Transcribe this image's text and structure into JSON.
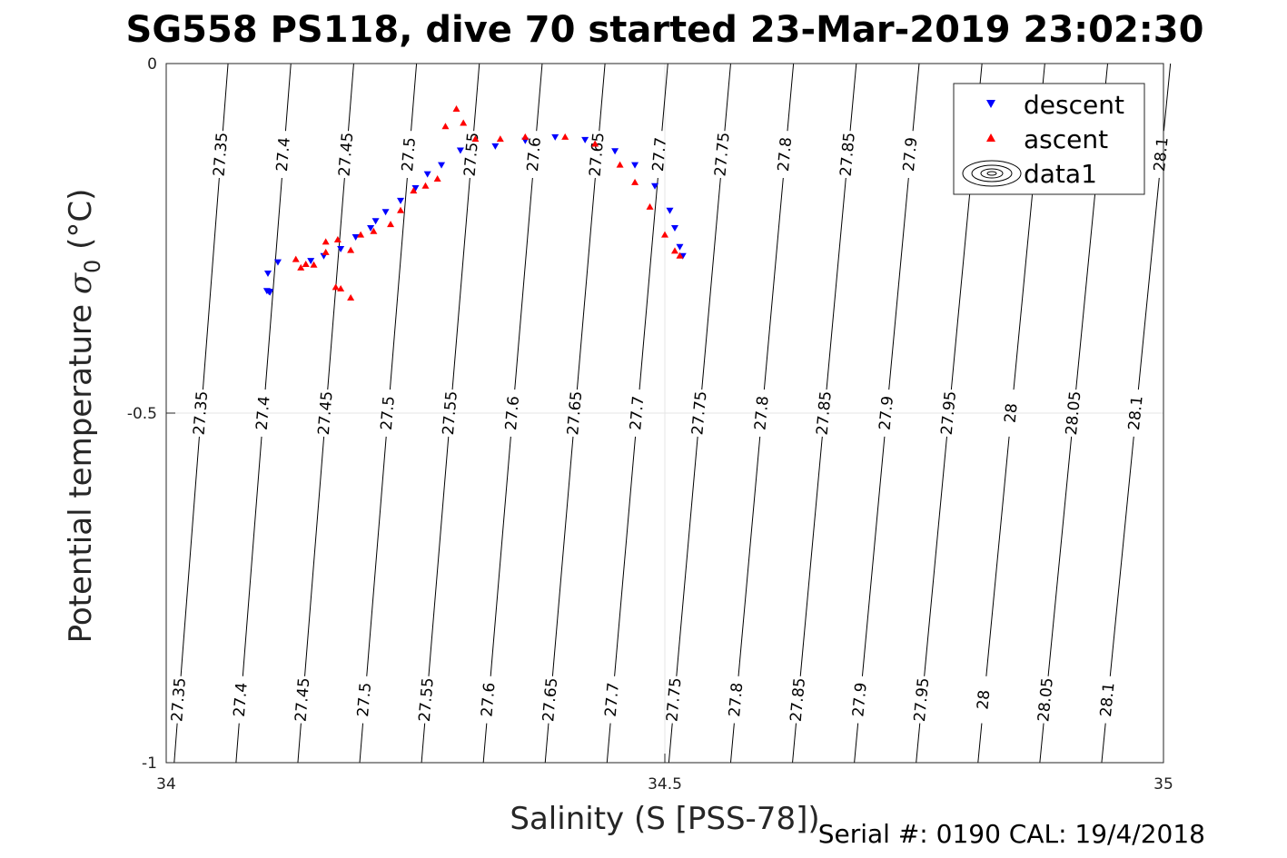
{
  "chart_data": {
    "type": "scatter",
    "title": "SG558 PS118, dive 70 started 23-Mar-2019 23:02:30",
    "xlabel": "Salinity (S [PSS-78])",
    "ylabel_prefix": "Potential temperature ",
    "ylabel_sigma": "σ",
    "ylabel_sub": "0",
    "ylabel_unit": " (°C)",
    "xlim": [
      34,
      35
    ],
    "ylim": [
      -1,
      0
    ],
    "xticks": [
      34,
      34.5,
      35
    ],
    "xtick_labels": [
      "34",
      "34.5",
      "35"
    ],
    "yticks": [
      0,
      -0.5,
      -1
    ],
    "ytick_labels": [
      "0",
      "-0.5",
      "-1"
    ],
    "grid": true,
    "legend_position": "top-right",
    "legend": [
      "descent",
      "ascent",
      "data1"
    ],
    "footer": "Serial #: 0190  CAL: 19/4/2018",
    "colors": {
      "descent": "#0000ff",
      "ascent": "#ff0000",
      "isopycnal": "#000000"
    },
    "isopycnals": {
      "levels": [
        "27.35",
        "27.4",
        "27.45",
        "27.5",
        "27.55",
        "27.6",
        "27.65",
        "27.7",
        "27.75",
        "27.8",
        "27.85",
        "27.9",
        "27.95",
        "28",
        "28.05",
        "28.1"
      ],
      "x_at_top": [
        34.062,
        34.125,
        34.188,
        34.251,
        34.314,
        34.377,
        34.44,
        34.503,
        34.566,
        34.629,
        34.692,
        34.755,
        34.818,
        34.881,
        34.944,
        35.007
      ],
      "x_at_bottom": [
        34.008,
        34.07,
        34.132,
        34.194,
        34.256,
        34.318,
        34.38,
        34.442,
        34.504,
        34.566,
        34.628,
        34.69,
        34.752,
        34.814,
        34.876,
        34.938
      ]
    },
    "series": [
      {
        "name": "descent",
        "marker": "triangle-down",
        "points": [
          [
            34.101,
            -0.325
          ],
          [
            34.103,
            -0.326
          ],
          [
            34.104,
            -0.327
          ],
          [
            34.102,
            -0.3
          ],
          [
            34.112,
            -0.284
          ],
          [
            34.145,
            -0.282
          ],
          [
            34.158,
            -0.275
          ],
          [
            34.175,
            -0.265
          ],
          [
            34.19,
            -0.248
          ],
          [
            34.205,
            -0.235
          ],
          [
            34.21,
            -0.225
          ],
          [
            34.22,
            -0.212
          ],
          [
            34.235,
            -0.196
          ],
          [
            34.25,
            -0.178
          ],
          [
            34.262,
            -0.158
          ],
          [
            34.276,
            -0.145
          ],
          [
            34.295,
            -0.124
          ],
          [
            34.33,
            -0.118
          ],
          [
            34.36,
            -0.11
          ],
          [
            34.39,
            -0.105
          ],
          [
            34.42,
            -0.109
          ],
          [
            34.45,
            -0.125
          ],
          [
            34.47,
            -0.145
          ],
          [
            34.49,
            -0.175
          ],
          [
            34.505,
            -0.21
          ],
          [
            34.51,
            -0.235
          ],
          [
            34.515,
            -0.262
          ],
          [
            34.518,
            -0.275
          ]
        ]
      },
      {
        "name": "ascent",
        "marker": "triangle-up",
        "points": [
          [
            34.13,
            -0.28
          ],
          [
            34.135,
            -0.292
          ],
          [
            34.14,
            -0.287
          ],
          [
            34.148,
            -0.288
          ],
          [
            34.16,
            -0.27
          ],
          [
            34.172,
            -0.252
          ],
          [
            34.185,
            -0.267
          ],
          [
            34.195,
            -0.245
          ],
          [
            34.208,
            -0.24
          ],
          [
            34.225,
            -0.23
          ],
          [
            34.235,
            -0.21
          ],
          [
            34.248,
            -0.182
          ],
          [
            34.26,
            -0.175
          ],
          [
            34.272,
            -0.165
          ],
          [
            34.28,
            -0.09
          ],
          [
            34.291,
            -0.065
          ],
          [
            34.298,
            -0.085
          ],
          [
            34.31,
            -0.108
          ],
          [
            34.335,
            -0.108
          ],
          [
            34.36,
            -0.105
          ],
          [
            34.4,
            -0.105
          ],
          [
            34.43,
            -0.115
          ],
          [
            34.455,
            -0.145
          ],
          [
            34.47,
            -0.17
          ],
          [
            34.485,
            -0.205
          ],
          [
            34.5,
            -0.245
          ],
          [
            34.51,
            -0.268
          ],
          [
            34.515,
            -0.275
          ],
          [
            34.17,
            -0.32
          ],
          [
            34.175,
            -0.322
          ],
          [
            34.185,
            -0.335
          ],
          [
            34.16,
            -0.255
          ]
        ]
      }
    ]
  }
}
